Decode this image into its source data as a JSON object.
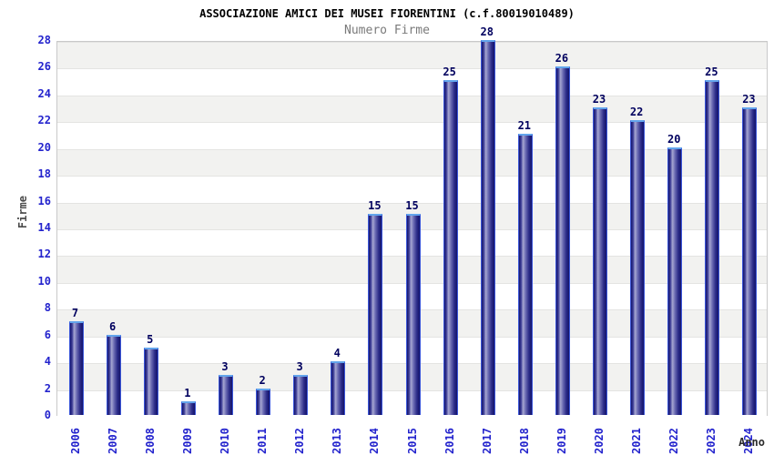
{
  "chart_data": {
    "type": "bar",
    "title": "ASSOCIAZIONE AMICI DEI MUSEI FIORENTINI (c.f.80019010489)",
    "subtitle": "Numero Firme",
    "xlabel": "Anno",
    "ylabel": "Firme",
    "categories": [
      "2006",
      "2007",
      "2008",
      "2009",
      "2010",
      "2011",
      "2012",
      "2013",
      "2014",
      "2015",
      "2016",
      "2017",
      "2018",
      "2019",
      "2020",
      "2021",
      "2022",
      "2023",
      "2024"
    ],
    "values": [
      7,
      6,
      5,
      1,
      3,
      2,
      3,
      4,
      15,
      15,
      25,
      28,
      21,
      26,
      23,
      22,
      20,
      25,
      23
    ],
    "ylim": [
      0,
      28
    ],
    "ytick_step": 2,
    "grid": "horizontal-bands",
    "legend_position": "none",
    "colors": {
      "tick_label": "#2323cd",
      "bar_dark": "#16166e",
      "bar_light": "#a7a7d2",
      "bar_outline": "#3a55d8",
      "bar_cap": "#62a4ec",
      "value_label": "#00005e",
      "band_gray": "#f2f2f0",
      "band_white": "#ffffff",
      "grid_line": "#e4e4e2",
      "plot_border": "#c9c9c9",
      "title_color": "#000000",
      "subtitle_color": "#7a7a7a",
      "axis_label_color": "#4a4a4a"
    }
  }
}
